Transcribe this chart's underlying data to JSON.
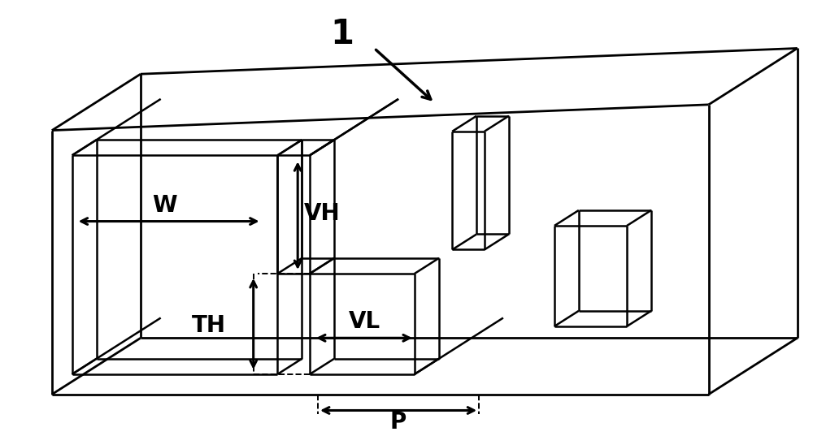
{
  "background_color": "#ffffff",
  "line_color": "#000000",
  "lw_main": 1.8,
  "lw_arrow": 2.2,
  "lw_dashed": 1.4,
  "font_size_labels": 20,
  "font_size_1": 30,
  "font_weight": "bold",
  "label_1": "1",
  "label_W": "W",
  "label_VH": "VH",
  "label_VL": "VL",
  "label_TH": "TH",
  "label_P": "P",
  "arrow_mutation_scale": 14
}
